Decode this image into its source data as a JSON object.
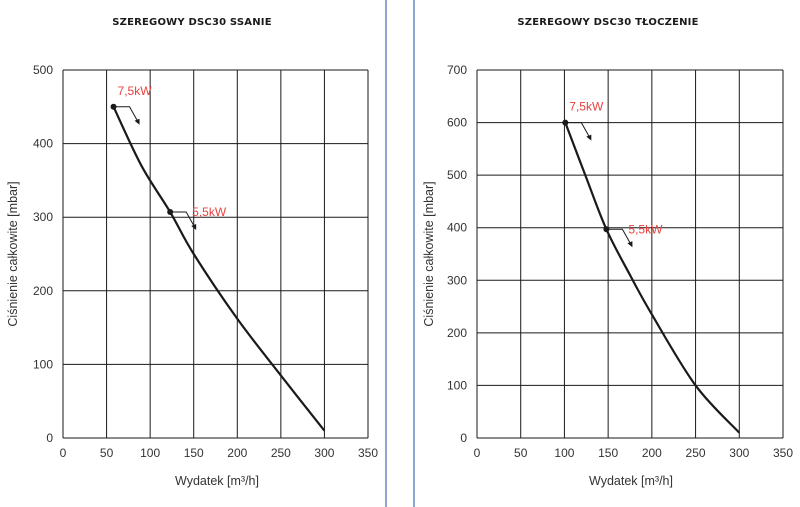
{
  "chart_data": [
    {
      "type": "line",
      "title": "SZEREGOWY DSC30 SSANIE",
      "xlabel": "Wydatek [m³/h]",
      "ylabel": "Ciśnienie całkowite [mbar]",
      "xlim": [
        0,
        350
      ],
      "ylim": [
        0,
        500
      ],
      "xticks": [
        0,
        50,
        100,
        150,
        200,
        250,
        300,
        350
      ],
      "yticks": [
        0,
        100,
        200,
        300,
        400,
        500
      ],
      "grid": true,
      "series": [
        {
          "x": [
            58,
            90,
            123,
            150,
            200,
            250,
            300
          ],
          "values": [
            450,
            370,
            307,
            250,
            162,
            85,
            10
          ]
        }
      ],
      "markers": [
        {
          "x": 58,
          "y": 450,
          "label": "7,5kW"
        },
        {
          "x": 123,
          "y": 307,
          "label": "5,5kW"
        }
      ]
    },
    {
      "type": "line",
      "title": "SZEREGOWY DSC30 TŁOCZENIE",
      "xlabel": "Wydatek [m³/h]",
      "ylabel": "Ciśnienie całkowite [mbar]",
      "xlim": [
        0,
        350
      ],
      "ylim": [
        0,
        700
      ],
      "xticks": [
        0,
        50,
        100,
        150,
        200,
        250,
        300,
        350
      ],
      "yticks": [
        0,
        100,
        200,
        300,
        400,
        500,
        600,
        700
      ],
      "grid": true,
      "series": [
        {
          "x": [
            101,
            125,
            148,
            175,
            200,
            250,
            300
          ],
          "values": [
            600,
            495,
            397,
            310,
            235,
            100,
            10
          ]
        }
      ],
      "markers": [
        {
          "x": 101,
          "y": 600,
          "label": "7,5kW"
        },
        {
          "x": 148,
          "y": 397,
          "label": "5,5kW"
        }
      ]
    }
  ]
}
